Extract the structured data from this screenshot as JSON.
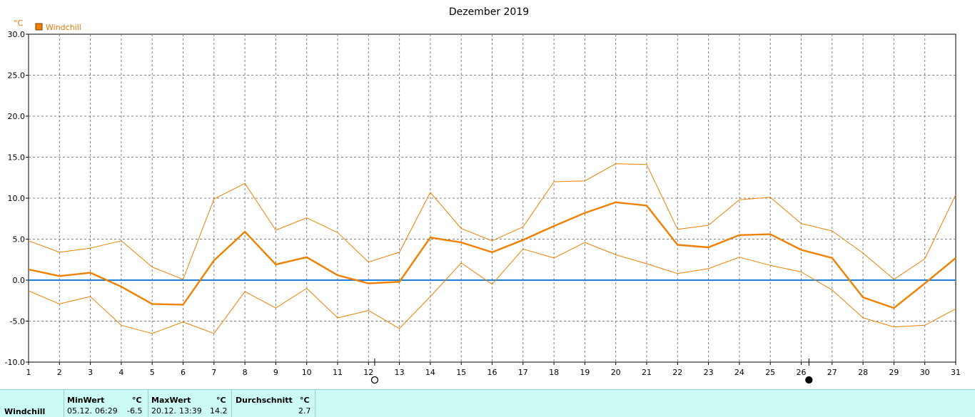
{
  "chart_data": {
    "type": "line",
    "title": "Dezember 2019",
    "ylabel": "°C",
    "ylim": [
      -10,
      30
    ],
    "yticks": [
      "30.0",
      "25.0",
      "20.0",
      "15.0",
      "10.0",
      "5.0",
      "0.0",
      "-5.0",
      "-10.0"
    ],
    "ytick_values": [
      30,
      25,
      20,
      15,
      10,
      5,
      0,
      -5,
      -10
    ],
    "x": [
      1,
      2,
      3,
      4,
      5,
      6,
      7,
      8,
      9,
      10,
      11,
      12,
      13,
      14,
      15,
      16,
      17,
      18,
      19,
      20,
      21,
      22,
      23,
      24,
      25,
      26,
      27,
      28,
      29,
      30,
      31
    ],
    "grid": true,
    "legend": {
      "placement": "top-left",
      "entries": [
        {
          "name": "Windchill",
          "color": "#f08000"
        }
      ]
    },
    "series": [
      {
        "name": "Windchill",
        "role": "mean",
        "values": [
          1.3,
          0.5,
          0.9,
          -0.8,
          -2.9,
          -3.0,
          2.4,
          5.9,
          1.9,
          2.8,
          0.6,
          -0.4,
          -0.2,
          5.2,
          4.6,
          3.4,
          4.9,
          6.6,
          8.2,
          9.5,
          9.1,
          4.3,
          4.0,
          5.5,
          5.6,
          3.7,
          2.7,
          -2.1,
          -3.4,
          -0.4,
          2.7
        ]
      },
      {
        "role": "max",
        "values": [
          4.8,
          3.4,
          3.9,
          4.8,
          1.6,
          0.1,
          9.9,
          11.8,
          6.1,
          7.6,
          5.8,
          2.2,
          3.4,
          10.7,
          6.3,
          4.8,
          6.5,
          12.0,
          12.1,
          14.2,
          14.1,
          6.2,
          6.7,
          9.8,
          10.1,
          6.9,
          6.0,
          3.3,
          0.1,
          2.6,
          10.4
        ]
      },
      {
        "role": "min",
        "values": [
          -1.3,
          -2.9,
          -2.0,
          -5.5,
          -6.5,
          -5.1,
          -6.5,
          -1.4,
          -3.4,
          -1.0,
          -4.6,
          -3.7,
          -5.9,
          -2.0,
          2.1,
          -0.5,
          3.8,
          2.7,
          4.6,
          3.1,
          2.0,
          0.8,
          1.4,
          2.8,
          1.8,
          1.0,
          -1.2,
          -4.6,
          -5.7,
          -5.5,
          -3.5
        ]
      }
    ],
    "reference_line": {
      "y": 0,
      "color": "#1f7fd6"
    },
    "moon_phases": [
      {
        "x": 12.2,
        "symbol": "○"
      },
      {
        "x": 26.25,
        "symbol": "●"
      }
    ],
    "colors": {
      "mean": "#f08000",
      "band": "#f08000",
      "grid": "#808080"
    }
  },
  "stats": {
    "row_label": "Windchill",
    "min_header": "MinWert",
    "min_unit": "°C",
    "min_date": "05.12.",
    "min_time": "06:29",
    "min_value": "-6.5",
    "max_header": "MaxWert",
    "max_unit": "°C",
    "max_date": "20.12.",
    "max_time": "13:39",
    "max_value": "14.2",
    "avg_header": "Durchschnitt",
    "avg_unit": "°C",
    "avg_value": "2.7"
  }
}
